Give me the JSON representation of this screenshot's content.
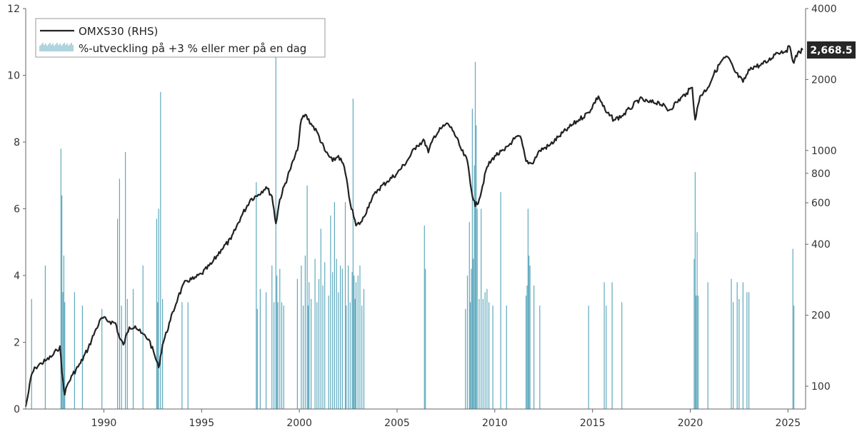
{
  "chart_data": {
    "type": "bar+line",
    "x_range": [
      1986.0,
      2025.9
    ],
    "x_ticks": [
      "1990",
      "1995",
      "2000",
      "2005",
      "2010",
      "2015",
      "2020",
      "2025"
    ],
    "y_left_range": [
      0,
      12
    ],
    "y_left_ticks": [
      "0",
      "2",
      "4",
      "6",
      "8",
      "10",
      "12"
    ],
    "y_right_scale": "log",
    "y_right_range": [
      80,
      4000
    ],
    "y_right_ticks": [
      "100",
      "200",
      "400",
      "600",
      "800",
      "1000",
      "2000",
      "4000"
    ],
    "legend_placement": "top-left",
    "colors": {
      "line": "#222222",
      "bars": "#5fa9bd",
      "badge_bg": "#262626"
    },
    "series": [
      {
        "name": "OMXS30 (RHS)",
        "type": "line",
        "axis": "right",
        "points": [
          [
            1986.0,
            82
          ],
          [
            1986.1,
            90
          ],
          [
            1986.3,
            112
          ],
          [
            1986.5,
            120
          ],
          [
            1986.8,
            125
          ],
          [
            1987.0,
            128
          ],
          [
            1987.3,
            133
          ],
          [
            1987.6,
            142
          ],
          [
            1987.75,
            148
          ],
          [
            1987.85,
            115
          ],
          [
            1988.0,
            92
          ],
          [
            1988.1,
            100
          ],
          [
            1988.4,
            112
          ],
          [
            1988.8,
            125
          ],
          [
            1989.2,
            145
          ],
          [
            1989.6,
            175
          ],
          [
            1989.9,
            195
          ],
          [
            1990.3,
            188
          ],
          [
            1990.6,
            185
          ],
          [
            1990.8,
            160
          ],
          [
            1991.0,
            150
          ],
          [
            1991.3,
            178
          ],
          [
            1991.6,
            180
          ],
          [
            1991.9,
            168
          ],
          [
            1992.3,
            158
          ],
          [
            1992.6,
            135
          ],
          [
            1992.8,
            120
          ],
          [
            1993.0,
            150
          ],
          [
            1993.4,
            190
          ],
          [
            1993.8,
            240
          ],
          [
            1994.2,
            280
          ],
          [
            1994.6,
            285
          ],
          [
            1995.0,
            300
          ],
          [
            1995.5,
            330
          ],
          [
            1996.0,
            380
          ],
          [
            1996.5,
            420
          ],
          [
            1997.0,
            520
          ],
          [
            1997.5,
            620
          ],
          [
            1997.9,
            650
          ],
          [
            1998.3,
            700
          ],
          [
            1998.6,
            640
          ],
          [
            1998.8,
            490
          ],
          [
            1999.0,
            620
          ],
          [
            1999.5,
            820
          ],
          [
            1999.9,
            1000
          ],
          [
            2000.1,
            1350
          ],
          [
            2000.3,
            1420
          ],
          [
            2000.6,
            1300
          ],
          [
            2000.9,
            1200
          ],
          [
            2001.3,
            1000
          ],
          [
            2001.7,
            900
          ],
          [
            2002.0,
            950
          ],
          [
            2002.3,
            850
          ],
          [
            2002.6,
            600
          ],
          [
            2002.9,
            480
          ],
          [
            2003.2,
            500
          ],
          [
            2003.6,
            600
          ],
          [
            2004.0,
            680
          ],
          [
            2004.5,
            740
          ],
          [
            2005.0,
            800
          ],
          [
            2005.5,
            900
          ],
          [
            2006.0,
            1050
          ],
          [
            2006.4,
            1100
          ],
          [
            2006.6,
            980
          ],
          [
            2006.9,
            1150
          ],
          [
            2007.3,
            1250
          ],
          [
            2007.6,
            1300
          ],
          [
            2007.9,
            1200
          ],
          [
            2008.3,
            1000
          ],
          [
            2008.6,
            900
          ],
          [
            2008.8,
            680
          ],
          [
            2009.0,
            580
          ],
          [
            2009.2,
            620
          ],
          [
            2009.6,
            850
          ],
          [
            2010.0,
            950
          ],
          [
            2010.5,
            1000
          ],
          [
            2010.9,
            1100
          ],
          [
            2011.3,
            1150
          ],
          [
            2011.6,
            900
          ],
          [
            2011.9,
            880
          ],
          [
            2012.3,
            1000
          ],
          [
            2012.8,
            1050
          ],
          [
            2013.3,
            1150
          ],
          [
            2013.8,
            1250
          ],
          [
            2014.3,
            1350
          ],
          [
            2014.8,
            1450
          ],
          [
            2015.3,
            1700
          ],
          [
            2015.7,
            1450
          ],
          [
            2016.1,
            1350
          ],
          [
            2016.5,
            1400
          ],
          [
            2016.9,
            1500
          ],
          [
            2017.4,
            1650
          ],
          [
            2017.9,
            1600
          ],
          [
            2018.4,
            1600
          ],
          [
            2018.9,
            1480
          ],
          [
            2019.3,
            1600
          ],
          [
            2019.8,
            1750
          ],
          [
            2020.1,
            1850
          ],
          [
            2020.25,
            1350
          ],
          [
            2020.5,
            1700
          ],
          [
            2020.9,
            1850
          ],
          [
            2021.2,
            2100
          ],
          [
            2021.6,
            2400
          ],
          [
            2021.9,
            2500
          ],
          [
            2022.3,
            2150
          ],
          [
            2022.7,
            1950
          ],
          [
            2023.1,
            2250
          ],
          [
            2023.6,
            2300
          ],
          [
            2024.0,
            2400
          ],
          [
            2024.4,
            2600
          ],
          [
            2024.9,
            2650
          ],
          [
            2025.1,
            2750
          ],
          [
            2025.3,
            2350
          ],
          [
            2025.5,
            2600
          ],
          [
            2025.75,
            2668.5
          ]
        ]
      },
      {
        "name": "%-utveckling på +3 % eller mer på en dag",
        "type": "bar",
        "axis": "left",
        "points": [
          [
            1986.3,
            3.3
          ],
          [
            1987.0,
            4.3
          ],
          [
            1987.8,
            7.8
          ],
          [
            1987.85,
            6.4
          ],
          [
            1987.9,
            3.5
          ],
          [
            1987.95,
            4.6
          ],
          [
            1988.0,
            3.2
          ],
          [
            1988.5,
            3.5
          ],
          [
            1988.9,
            3.1
          ],
          [
            1989.9,
            3.0
          ],
          [
            1990.7,
            5.7
          ],
          [
            1990.8,
            6.9
          ],
          [
            1990.9,
            3.1
          ],
          [
            1991.1,
            7.7
          ],
          [
            1991.2,
            3.3
          ],
          [
            1991.5,
            3.6
          ],
          [
            1992.0,
            4.3
          ],
          [
            1992.7,
            5.7
          ],
          [
            1992.75,
            3.2
          ],
          [
            1992.8,
            6.0
          ],
          [
            1992.9,
            9.5
          ],
          [
            1993.0,
            3.3
          ],
          [
            1994.0,
            3.2
          ],
          [
            1994.3,
            3.2
          ],
          [
            1997.8,
            6.8
          ],
          [
            1997.85,
            3.0
          ],
          [
            1998.0,
            3.6
          ],
          [
            1998.3,
            3.5
          ],
          [
            1998.6,
            4.3
          ],
          [
            1998.7,
            3.2
          ],
          [
            1998.8,
            10.6
          ],
          [
            1998.85,
            4.0
          ],
          [
            1998.9,
            3.2
          ],
          [
            1999.0,
            4.2
          ],
          [
            1999.1,
            3.2
          ],
          [
            1999.2,
            3.1
          ],
          [
            1999.9,
            3.9
          ],
          [
            2000.1,
            4.3
          ],
          [
            2000.2,
            3.1
          ],
          [
            2000.3,
            4.6
          ],
          [
            2000.4,
            6.7
          ],
          [
            2000.45,
            3.1
          ],
          [
            2000.5,
            3.8
          ],
          [
            2000.6,
            3.3
          ],
          [
            2000.8,
            4.5
          ],
          [
            2000.9,
            3.2
          ],
          [
            2001.0,
            3.9
          ],
          [
            2001.1,
            5.4
          ],
          [
            2001.2,
            3.7
          ],
          [
            2001.3,
            4.4
          ],
          [
            2001.5,
            3.4
          ],
          [
            2001.6,
            5.8
          ],
          [
            2001.7,
            4.1
          ],
          [
            2001.8,
            6.2
          ],
          [
            2001.9,
            4.5
          ],
          [
            2002.0,
            3.5
          ],
          [
            2002.1,
            4.3
          ],
          [
            2002.2,
            4.2
          ],
          [
            2002.35,
            6.2
          ],
          [
            2002.4,
            3.1
          ],
          [
            2002.5,
            4.3
          ],
          [
            2002.6,
            3.2
          ],
          [
            2002.7,
            4.1
          ],
          [
            2002.75,
            9.3
          ],
          [
            2002.8,
            4.0
          ],
          [
            2002.85,
            3.3
          ],
          [
            2002.9,
            3.8
          ],
          [
            2003.0,
            4.0
          ],
          [
            2003.1,
            4.3
          ],
          [
            2003.2,
            3.1
          ],
          [
            2003.3,
            3.6
          ],
          [
            2006.4,
            5.5
          ],
          [
            2006.45,
            4.2
          ],
          [
            2008.5,
            3.0
          ],
          [
            2008.6,
            4.0
          ],
          [
            2008.7,
            5.6
          ],
          [
            2008.75,
            3.2
          ],
          [
            2008.8,
            4.2
          ],
          [
            2008.85,
            9.0
          ],
          [
            2008.9,
            4.5
          ],
          [
            2008.95,
            7.3
          ],
          [
            2009.0,
            10.4
          ],
          [
            2009.05,
            8.5
          ],
          [
            2009.1,
            6.0
          ],
          [
            2009.2,
            3.3
          ],
          [
            2009.3,
            6.0
          ],
          [
            2009.4,
            3.3
          ],
          [
            2009.5,
            3.5
          ],
          [
            2009.6,
            3.6
          ],
          [
            2009.7,
            3.2
          ],
          [
            2009.9,
            3.1
          ],
          [
            2010.3,
            6.5
          ],
          [
            2010.6,
            3.1
          ],
          [
            2011.6,
            3.4
          ],
          [
            2011.65,
            3.7
          ],
          [
            2011.7,
            6.0
          ],
          [
            2011.75,
            4.6
          ],
          [
            2011.8,
            4.3
          ],
          [
            2012.0,
            3.7
          ],
          [
            2012.3,
            3.1
          ],
          [
            2014.8,
            3.1
          ],
          [
            2015.6,
            3.8
          ],
          [
            2015.7,
            3.1
          ],
          [
            2016.0,
            3.8
          ],
          [
            2016.5,
            3.2
          ],
          [
            2020.2,
            4.5
          ],
          [
            2020.25,
            7.1
          ],
          [
            2020.3,
            3.4
          ],
          [
            2020.35,
            5.3
          ],
          [
            2020.4,
            3.4
          ],
          [
            2020.9,
            3.8
          ],
          [
            2022.1,
            3.9
          ],
          [
            2022.2,
            3.2
          ],
          [
            2022.4,
            3.8
          ],
          [
            2022.5,
            3.3
          ],
          [
            2022.7,
            3.8
          ],
          [
            2022.9,
            3.5
          ],
          [
            2023.0,
            3.5
          ],
          [
            2025.25,
            4.8
          ],
          [
            2025.3,
            3.1
          ]
        ]
      }
    ],
    "last_value_label": "2,668.5"
  }
}
